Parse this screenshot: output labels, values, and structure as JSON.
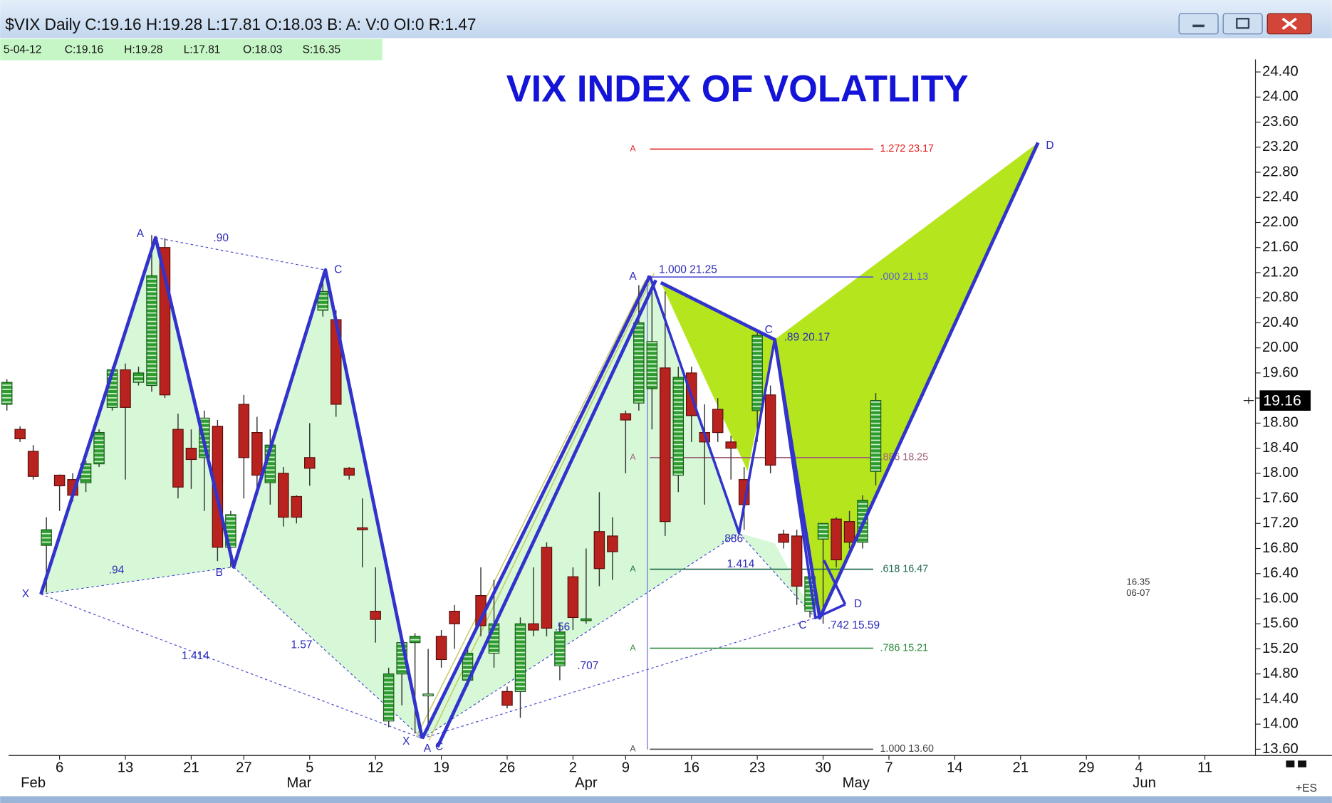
{
  "window_title": "$VIX Daily C:19.16 H:19.28 L:17.81 O:18.03 B: A: V:0 OI:0 R:1.47",
  "info_bar": [
    "5-04-12",
    "C:19.16",
    "H:19.28",
    "L:17.81",
    "O:18.03",
    "S:16.35"
  ],
  "chart_data": {
    "type": "candlestick",
    "title": "VIX INDEX OF VOLATLITY",
    "up_color": "#2e9b2e",
    "down_color": "#b8231f",
    "x": [
      -4,
      -3,
      -2,
      -1,
      0,
      1,
      2,
      3,
      4,
      5,
      6,
      7,
      8,
      9,
      10,
      11,
      12,
      13,
      14,
      15,
      16,
      17,
      18,
      19,
      20,
      21,
      22,
      23,
      24,
      25,
      26,
      27,
      28,
      29,
      30,
      31,
      32,
      33,
      34,
      35,
      36,
      37,
      38,
      39,
      40,
      41,
      42,
      43,
      44,
      45,
      46,
      47,
      48,
      49,
      50,
      51,
      52,
      53,
      54,
      55,
      56,
      57,
      58,
      59,
      60,
      61,
      62
    ],
    "open": [
      19.1,
      18.7,
      18.35,
      16.85,
      17.97,
      17.9,
      17.85,
      18.15,
      19.05,
      19.65,
      19.45,
      19.4,
      21.6,
      18.7,
      18.4,
      18.25,
      18.75,
      16.82,
      19.1,
      18.65,
      17.85,
      18.0,
      17.63,
      18.25,
      20.6,
      20.45,
      18.08,
      17.13,
      15.8,
      14.05,
      14.8,
      15.3,
      14.45,
      15.4,
      15.8,
      14.7,
      16.05,
      15.13,
      14.52,
      14.52,
      15.6,
      16.82,
      14.93,
      16.35,
      15.65,
      17.07,
      17.0,
      18.95,
      19.12,
      19.35,
      19.68,
      17.97,
      19.6,
      18.65,
      19.02,
      18.5,
      17.9,
      19.0,
      19.25,
      17.03,
      17.0,
      15.8,
      16.95,
      17.27,
      17.23,
      16.9,
      18.03
    ],
    "high": [
      19.5,
      18.75,
      18.45,
      17.3,
      17.98,
      18.0,
      18.2,
      18.7,
      19.7,
      19.75,
      19.7,
      21.8,
      21.75,
      18.95,
      18.7,
      19.0,
      18.85,
      17.4,
      19.25,
      18.9,
      18.7,
      18.1,
      17.65,
      18.8,
      21.2,
      20.6,
      18.1,
      17.6,
      16.5,
      14.9,
      15.4,
      15.45,
      15.2,
      15.5,
      15.9,
      15.2,
      16.5,
      16.3,
      14.6,
      15.7,
      16.5,
      16.9,
      15.6,
      16.5,
      16.8,
      17.7,
      17.3,
      19.0,
      21.0,
      21.1,
      20.9,
      19.7,
      19.7,
      19.1,
      19.2,
      18.6,
      18.1,
      20.3,
      19.4,
      17.1,
      17.1,
      16.4,
      17.2,
      17.3,
      17.4,
      17.65,
      19.28
    ],
    "low": [
      19.0,
      18.5,
      17.9,
      16.1,
      17.4,
      17.55,
      17.7,
      18.1,
      19.0,
      17.9,
      19.4,
      19.3,
      19.2,
      17.6,
      17.75,
      17.4,
      16.6,
      16.5,
      17.6,
      17.7,
      17.5,
      17.15,
      17.2,
      17.8,
      20.5,
      18.9,
      17.9,
      16.5,
      15.3,
      13.95,
      14.3,
      13.85,
      13.9,
      14.9,
      15.2,
      14.6,
      15.4,
      14.9,
      14.25,
      14.1,
      15.4,
      15.4,
      14.7,
      15.5,
      15.6,
      16.2,
      16.3,
      18.0,
      19.0,
      18.7,
      17.0,
      17.7,
      18.5,
      17.5,
      18.5,
      17.9,
      17.1,
      18.5,
      18.0,
      16.8,
      15.9,
      15.7,
      15.6,
      16.5,
      16.8,
      16.8,
      17.81
    ],
    "close": [
      19.45,
      18.55,
      17.95,
      17.1,
      17.8,
      17.65,
      18.15,
      18.65,
      19.65,
      19.05,
      19.6,
      21.15,
      19.25,
      17.78,
      18.22,
      18.88,
      16.82,
      17.34,
      18.25,
      17.97,
      18.45,
      17.3,
      17.3,
      18.08,
      20.9,
      19.1,
      17.97,
      17.1,
      15.67,
      14.8,
      15.3,
      15.4,
      14.48,
      15.03,
      15.6,
      15.13,
      15.57,
      15.6,
      14.3,
      15.6,
      15.5,
      15.53,
      15.47,
      15.7,
      15.68,
      16.48,
      16.75,
      18.85,
      20.4,
      20.1,
      17.23,
      19.53,
      18.92,
      18.5,
      18.65,
      18.4,
      17.5,
      20.2,
      18.13,
      16.9,
      16.2,
      16.35,
      17.2,
      16.62,
      16.9,
      17.57,
      19.16
    ],
    "xlim": [
      -3.87,
      90.84
    ],
    "ylim": [
      13.5,
      24.6
    ],
    "yticks": [
      {
        "value": 13.6,
        "label": "13.60"
      },
      {
        "value": 14.0,
        "label": "14.00"
      },
      {
        "value": 14.4,
        "label": "14.40"
      },
      {
        "value": 14.8,
        "label": "14.80"
      },
      {
        "value": 15.2,
        "label": "15.20"
      },
      {
        "value": 15.6,
        "label": "15.60"
      },
      {
        "value": 16.0,
        "label": "16.00"
      },
      {
        "value": 16.4,
        "label": "16.40"
      },
      {
        "value": 16.8,
        "label": "16.80"
      },
      {
        "value": 17.2,
        "label": "17.20"
      },
      {
        "value": 17.6,
        "label": "17.60"
      },
      {
        "value": 18.0,
        "label": "18.00"
      },
      {
        "value": 18.4,
        "label": "18.40"
      },
      {
        "value": 18.8,
        "label": "18.80"
      },
      {
        "value": 19.2,
        "label": "19.20"
      },
      {
        "value": 19.6,
        "label": "19.60"
      },
      {
        "value": 20.0,
        "label": "20.00"
      },
      {
        "value": 20.4,
        "label": "20.40"
      },
      {
        "value": 20.8,
        "label": "20.80"
      },
      {
        "value": 21.2,
        "label": "21.20"
      },
      {
        "value": 21.6,
        "label": "21.60"
      },
      {
        "value": 22.0,
        "label": "22.00"
      },
      {
        "value": 22.4,
        "label": "22.40"
      },
      {
        "value": 22.8,
        "label": "22.80"
      },
      {
        "value": 23.2,
        "label": "23.20"
      },
      {
        "value": 23.6,
        "label": "23.60"
      },
      {
        "value": 24.0,
        "label": "24.00"
      },
      {
        "value": 24.4,
        "label": "24.40"
      }
    ],
    "xticks": [
      {
        "value": 0,
        "label": "6"
      },
      {
        "value": 5,
        "label": "13"
      },
      {
        "value": 10,
        "label": "21"
      },
      {
        "value": 14,
        "label": "27"
      },
      {
        "value": 19,
        "label": "5"
      },
      {
        "value": 24,
        "label": "12"
      },
      {
        "value": 29,
        "label": "19"
      },
      {
        "value": 34,
        "label": "26"
      },
      {
        "value": 39,
        "label": "2"
      },
      {
        "value": 43,
        "label": "9"
      },
      {
        "value": 48,
        "label": "16"
      },
      {
        "value": 53,
        "label": "23"
      },
      {
        "value": 58,
        "label": "30"
      },
      {
        "value": 63,
        "label": "7"
      },
      {
        "value": 68,
        "label": "14"
      },
      {
        "value": 73,
        "label": "21"
      },
      {
        "value": 78,
        "label": "29"
      },
      {
        "value": 82,
        "label": "4"
      },
      {
        "value": 87,
        "label": "11"
      }
    ],
    "month_ticks": [
      {
        "value": -2,
        "label": "Feb"
      },
      {
        "value": 18.2,
        "label": "Mar"
      },
      {
        "value": 40,
        "label": "Apr"
      },
      {
        "value": 60.5,
        "label": "May"
      },
      {
        "value": 82.4,
        "label": "Jun"
      }
    ],
    "last_price": 19.16,
    "fib_levels": [
      {
        "label": "1.272 23.17",
        "value": 23.17,
        "color": "#e02020",
        "tag": "A"
      },
      {
        "label": ".000 21.13",
        "value": 21.13,
        "color": "#5b5bd6"
      },
      {
        "label": ".886 18.25",
        "value": 18.25,
        "color": "#a0607a",
        "tag": "A"
      },
      {
        "label": ".618 16.47",
        "value": 16.47,
        "color": "#1f6a4a",
        "tag": "A"
      },
      {
        "label": ".786 15.21",
        "value": 15.21,
        "color": "#2a8a3a",
        "tag": "A"
      },
      {
        "label": "1.000 13.60",
        "value": 13.6,
        "color": "#444444",
        "tag": "A"
      }
    ],
    "annotations": [
      "A",
      ".90",
      "C",
      "X",
      ".94",
      "B",
      "1.414",
      "1.57",
      "X",
      "A",
      "C",
      ".56",
      ".707",
      "1.414",
      "1.000 21.25",
      "A",
      "C",
      ".89 20.17",
      ".886",
      "C",
      ".742 15.59",
      "D",
      "D",
      "16.35",
      "06-07",
      "+ES"
    ]
  }
}
